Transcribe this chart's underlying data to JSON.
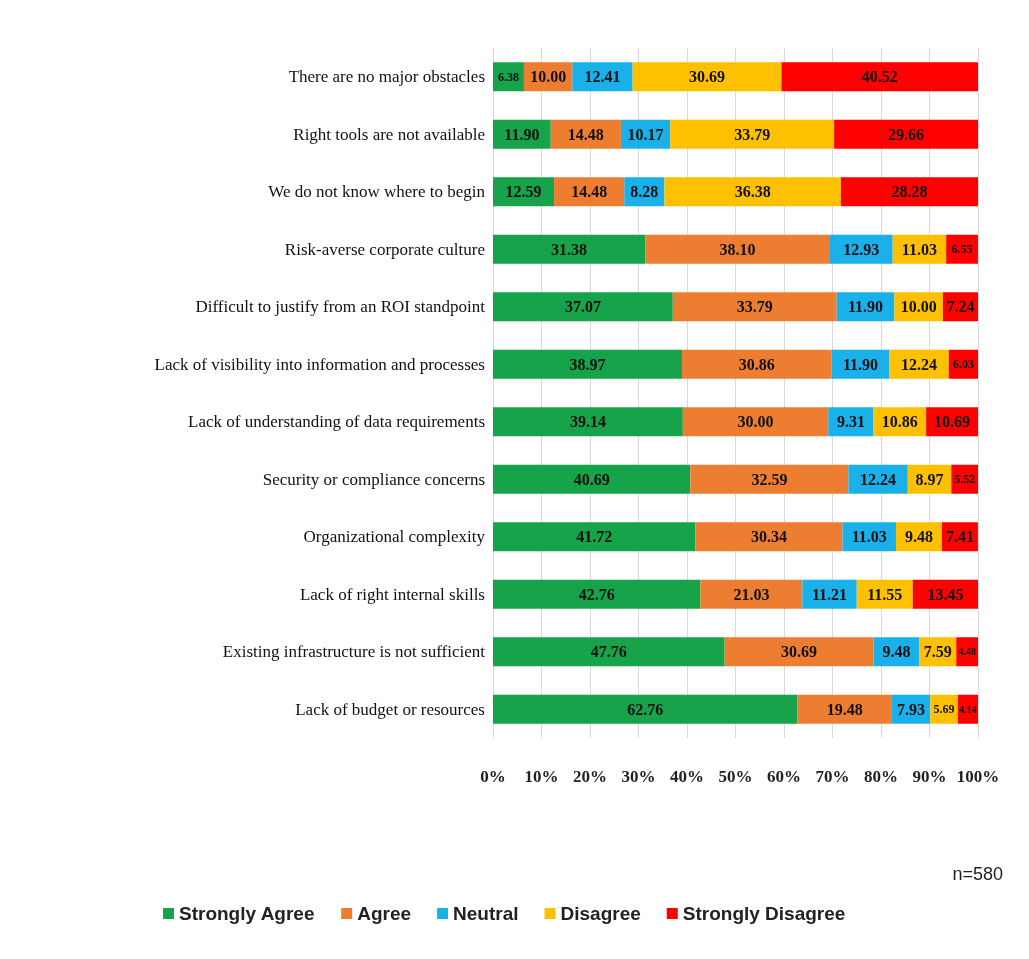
{
  "chart_data": {
    "type": "bar",
    "orientation": "horizontal",
    "stacked": true,
    "categories": [
      "There are no major obstacles",
      "Right tools are not available",
      "We do not know where to begin",
      "Risk-averse corporate culture",
      "Difficult to justify from an ROI standpoint",
      "Lack of visibility into information and processes",
      "Lack of understanding of data requirements",
      "Security or compliance concerns",
      "Organizational complexity",
      "Lack of right internal skills",
      "Existing infrastructure is not sufficient",
      "Lack of budget or resources"
    ],
    "series": [
      {
        "name": "Strongly Agree",
        "color": "#16a34a",
        "values": [
          6.38,
          11.9,
          12.59,
          31.38,
          37.07,
          38.97,
          39.14,
          40.69,
          41.72,
          42.76,
          47.76,
          62.76
        ],
        "value_labels": [
          "6.38",
          "11.90",
          "12.59",
          "31.38",
          "37.07",
          "38.97",
          "39.14",
          "40.69",
          "41.72",
          "42.76",
          "47.76",
          "62.76"
        ]
      },
      {
        "name": "Agree",
        "color": "#ed7d31",
        "values": [
          10.0,
          14.48,
          14.48,
          38.1,
          33.79,
          30.86,
          30.0,
          32.59,
          30.34,
          21.03,
          30.69,
          19.48
        ],
        "value_labels": [
          "10.00",
          "14.48",
          "14.48",
          "38.10",
          "33.79",
          "30.86",
          "30.00",
          "32.59",
          "30.34",
          "21.03",
          "30.69",
          "19.48"
        ]
      },
      {
        "name": "Neutral",
        "color": "#1ab0ea",
        "values": [
          12.41,
          10.17,
          8.28,
          12.93,
          11.9,
          11.9,
          9.31,
          12.24,
          11.03,
          11.21,
          9.48,
          7.93
        ],
        "value_labels": [
          "12.41",
          "10.17",
          "8.28",
          "12.93",
          "11.90",
          "11.90",
          "9.31",
          "12.24",
          "11.03",
          "11.21",
          "9.48",
          "7.93"
        ]
      },
      {
        "name": "Disagree",
        "color": "#ffc000",
        "values": [
          30.69,
          33.79,
          36.38,
          11.03,
          10.0,
          12.24,
          10.86,
          8.97,
          9.48,
          11.55,
          7.59,
          5.69
        ],
        "value_labels": [
          "30.69",
          "33.79",
          "36.38",
          "11.03",
          "10.00",
          "12.24",
          "10.86",
          "8.97",
          "9.48",
          "11.55",
          "7.59",
          "5.69"
        ]
      },
      {
        "name": "Strongly Disagree",
        "color": "#ff0000",
        "values": [
          40.52,
          29.66,
          28.28,
          6.55,
          7.24,
          6.03,
          10.69,
          5.52,
          7.41,
          13.45,
          4.48,
          4.14
        ],
        "value_labels": [
          "40.52",
          "29.66",
          "28.28",
          "6.55",
          "7.24",
          "6.03",
          "10.69",
          "5.52",
          "7.41",
          "13.45",
          "4.48",
          "4.14"
        ]
      }
    ],
    "xlim": [
      0,
      100
    ],
    "xticks": [
      {
        "value": 0,
        "label": "0%"
      },
      {
        "value": 10,
        "label": "10%"
      },
      {
        "value": 20,
        "label": "20%"
      },
      {
        "value": 30,
        "label": "30%"
      },
      {
        "value": 40,
        "label": "40%"
      },
      {
        "value": 50,
        "label": "50%"
      },
      {
        "value": 60,
        "label": "60%"
      },
      {
        "value": 70,
        "label": "70%"
      },
      {
        "value": 80,
        "label": "80%"
      },
      {
        "value": 90,
        "label": "90%"
      },
      {
        "value": 100,
        "label": "100%"
      }
    ],
    "grid": "x",
    "legend": "bottom",
    "annotations": [
      "n=580"
    ]
  }
}
